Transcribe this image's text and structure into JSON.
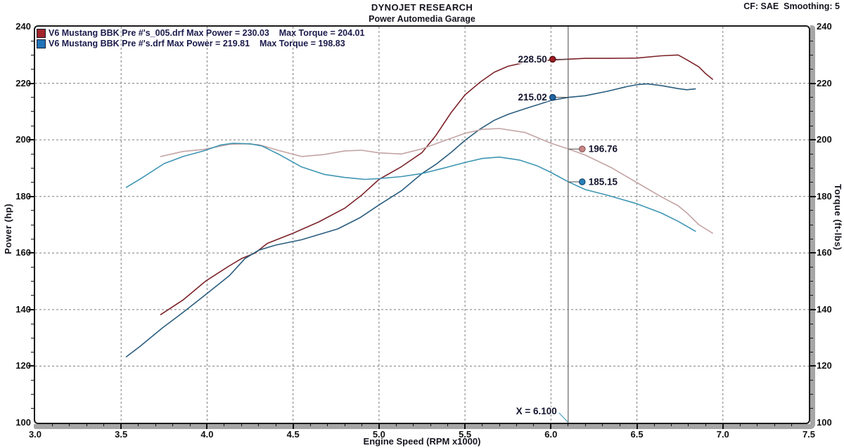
{
  "header": {
    "title": "DYNOJET RESEARCH",
    "subtitle": "Power Automedia Garage",
    "cf_label": "CF: SAE  Smoothing: 5"
  },
  "legend": [
    {
      "swatch_color": "#a0242a",
      "label": "V6 Mustang BBK Pre #'s_005.drf Max Power = 230.03    Max Torque = 204.01"
    },
    {
      "swatch_color": "#2273b8",
      "label": "V6 Mustang BBK Pre #'s.drf Max Power = 219.81    Max Torque = 198.83"
    }
  ],
  "colors": {
    "grid": "#7d7d7d",
    "frame": "#1b1b1b",
    "axis_band": "#a6a6a6",
    "cursor_line": "#8a8a8a",
    "text": "#15151f",
    "callout_text": "#14142e"
  },
  "chart_data": {
    "type": "line",
    "title": "DYNOJET RESEARCH",
    "subtitle": "Power Automedia Garage",
    "xlabel": "Engine Speed (RPM x1000)",
    "ylabel_left": "Power (hp)",
    "ylabel_right": "Torque (ft-lbs)",
    "xlim": [
      3.0,
      7.5
    ],
    "ylim": [
      100,
      240
    ],
    "x_major": 0.5,
    "x_minor": 0.1,
    "y_major": 20,
    "y_minor": 5,
    "grid": "dashed major gridlines both axes",
    "legend_position": "top-left inside plot",
    "x_tick_labels": [
      "3.0",
      "3.5",
      "4.0",
      "4.5",
      "5.0",
      "5.5",
      "6.0",
      "6.5",
      "7.0",
      "7.5"
    ],
    "y_tick_labels": [
      "240",
      "220",
      "200",
      "180",
      "160",
      "140",
      "120",
      "100"
    ],
    "cursor_x": 6.1,
    "cursor_label": "X = 6.100",
    "series": [
      {
        "name": "power-red",
        "run": "V6 Mustang BBK Pre #'s_005.drf",
        "quantity": "Power (hp)",
        "max_value": 230.03,
        "color": "#7c2329",
        "points": [
          [
            3.73,
            138.2
          ],
          [
            3.86,
            143.4
          ],
          [
            3.99,
            150.0
          ],
          [
            4.12,
            155.1
          ],
          [
            4.2,
            158.0
          ],
          [
            4.28,
            160.0
          ],
          [
            4.35,
            163.4
          ],
          [
            4.5,
            167.0
          ],
          [
            4.65,
            171.0
          ],
          [
            4.8,
            175.8
          ],
          [
            4.9,
            180.5
          ],
          [
            5.0,
            186.0
          ],
          [
            5.13,
            190.5
          ],
          [
            5.25,
            195.5
          ],
          [
            5.33,
            201.5
          ],
          [
            5.42,
            209.7
          ],
          [
            5.5,
            215.9
          ],
          [
            5.59,
            220.5
          ],
          [
            5.67,
            223.9
          ],
          [
            5.75,
            226.0
          ],
          [
            5.85,
            227.4
          ],
          [
            6.0,
            228.2
          ],
          [
            6.1,
            228.5
          ],
          [
            6.2,
            228.8
          ],
          [
            6.35,
            228.8
          ],
          [
            6.5,
            228.9
          ],
          [
            6.64,
            229.7
          ],
          [
            6.74,
            230.0
          ],
          [
            6.79,
            228.3
          ],
          [
            6.86,
            225.8
          ],
          [
            6.9,
            223.4
          ],
          [
            6.94,
            221.4
          ]
        ]
      },
      {
        "name": "power-blue",
        "run": "V6 Mustang BBK Pre #'s.drf",
        "quantity": "Power (hp)",
        "max_value": 219.81,
        "color": "#2a5d7f",
        "points": [
          [
            3.53,
            123.3
          ],
          [
            3.61,
            127.0
          ],
          [
            3.74,
            133.5
          ],
          [
            3.86,
            139.0
          ],
          [
            3.99,
            145.2
          ],
          [
            4.13,
            152.0
          ],
          [
            4.22,
            158.0
          ],
          [
            4.3,
            161.0
          ],
          [
            4.4,
            162.8
          ],
          [
            4.55,
            164.7
          ],
          [
            4.76,
            168.5
          ],
          [
            4.89,
            172.5
          ],
          [
            5.0,
            177.0
          ],
          [
            5.13,
            182.0
          ],
          [
            5.25,
            188.1
          ],
          [
            5.33,
            191.3
          ],
          [
            5.42,
            195.6
          ],
          [
            5.5,
            199.8
          ],
          [
            5.59,
            203.9
          ],
          [
            5.67,
            206.9
          ],
          [
            5.75,
            209.0
          ],
          [
            5.85,
            211.0
          ],
          [
            6.0,
            213.9
          ],
          [
            6.1,
            215.0
          ],
          [
            6.2,
            215.6
          ],
          [
            6.33,
            217.2
          ],
          [
            6.44,
            218.8
          ],
          [
            6.5,
            219.5
          ],
          [
            6.56,
            219.8
          ],
          [
            6.64,
            219.2
          ],
          [
            6.74,
            218.1
          ],
          [
            6.79,
            217.7
          ],
          [
            6.84,
            218.0
          ]
        ]
      },
      {
        "name": "torque-salmon",
        "run": "V6 Mustang BBK Pre #'s_005.drf",
        "quantity": "Torque (ft-lbs)",
        "max_value": 204.01,
        "color": "#c4a4a4",
        "points": [
          [
            3.73,
            194.1
          ],
          [
            3.86,
            195.9
          ],
          [
            3.98,
            196.6
          ],
          [
            4.13,
            198.4
          ],
          [
            4.22,
            198.6
          ],
          [
            4.3,
            198.3
          ],
          [
            4.42,
            196.2
          ],
          [
            4.55,
            194.1
          ],
          [
            4.68,
            194.8
          ],
          [
            4.8,
            196.1
          ],
          [
            4.9,
            196.3
          ],
          [
            5.0,
            195.4
          ],
          [
            5.13,
            195.0
          ],
          [
            5.25,
            196.8
          ],
          [
            5.37,
            199.5
          ],
          [
            5.5,
            202.3
          ],
          [
            5.6,
            203.7
          ],
          [
            5.7,
            204.0
          ],
          [
            5.85,
            202.6
          ],
          [
            6.0,
            198.8
          ],
          [
            6.1,
            196.8
          ],
          [
            6.2,
            194.6
          ],
          [
            6.35,
            190.2
          ],
          [
            6.5,
            184.9
          ],
          [
            6.64,
            179.9
          ],
          [
            6.74,
            176.7
          ],
          [
            6.79,
            174.2
          ],
          [
            6.86,
            170.0
          ],
          [
            6.94,
            167.0
          ]
        ]
      },
      {
        "name": "torque-teal",
        "run": "V6 Mustang BBK Pre #'s.drf",
        "quantity": "Torque (ft-lbs)",
        "max_value": 198.83,
        "color": "#3e96b4",
        "points": [
          [
            3.53,
            183.2
          ],
          [
            3.61,
            186.1
          ],
          [
            3.75,
            191.6
          ],
          [
            3.86,
            194.1
          ],
          [
            3.98,
            196.1
          ],
          [
            4.08,
            198.2
          ],
          [
            4.15,
            198.8
          ],
          [
            4.25,
            198.6
          ],
          [
            4.32,
            197.8
          ],
          [
            4.42,
            194.8
          ],
          [
            4.55,
            190.4
          ],
          [
            4.68,
            187.8
          ],
          [
            4.8,
            186.7
          ],
          [
            4.92,
            186.0
          ],
          [
            5.0,
            186.3
          ],
          [
            5.13,
            187.0
          ],
          [
            5.25,
            188.1
          ],
          [
            5.37,
            189.9
          ],
          [
            5.5,
            192.0
          ],
          [
            5.6,
            193.4
          ],
          [
            5.7,
            193.9
          ],
          [
            5.82,
            192.8
          ],
          [
            5.92,
            190.8
          ],
          [
            6.0,
            188.5
          ],
          [
            6.1,
            185.2
          ],
          [
            6.2,
            182.4
          ],
          [
            6.33,
            180.4
          ],
          [
            6.5,
            177.4
          ],
          [
            6.64,
            174.2
          ],
          [
            6.74,
            171.2
          ],
          [
            6.84,
            167.7
          ]
        ]
      }
    ],
    "cursor_callouts": [
      {
        "text": "228.50",
        "value": 228.5,
        "side": "left",
        "dot_fill": "#9e1c22",
        "dot_ring": "#4b0f12"
      },
      {
        "text": "215.02",
        "value": 215.02,
        "side": "left",
        "dot_fill": "#2166a5",
        "dot_ring": "#12355c"
      },
      {
        "text": "196.76",
        "value": 196.76,
        "side": "right",
        "dot_fill": "#c98585",
        "dot_ring": "#8d5a5a"
      },
      {
        "text": "185.15",
        "value": 185.15,
        "side": "right",
        "dot_fill": "#2980b9",
        "dot_ring": "#14496e"
      }
    ]
  }
}
